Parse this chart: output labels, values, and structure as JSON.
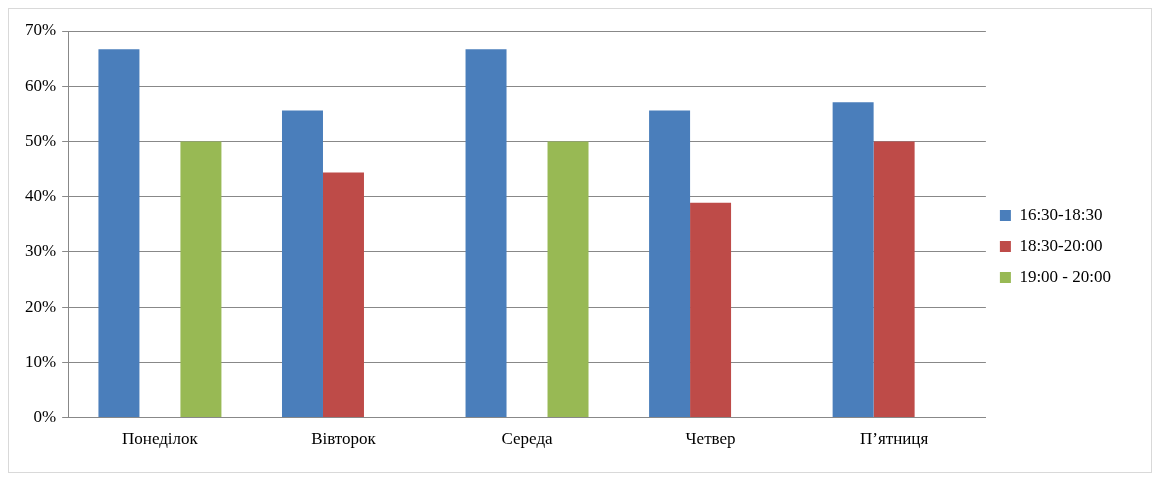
{
  "chart_data": {
    "type": "bar",
    "categories": [
      "Понеділок",
      "Вівторок",
      "Середа",
      "Четвер",
      "П’ятниця"
    ],
    "series": [
      {
        "name": "16:30-18:30",
        "color": "#4a7ebb",
        "values": [
          66.7,
          55.6,
          66.7,
          55.6,
          57.1
        ]
      },
      {
        "name": "18:30-20:00",
        "color": "#be4b48",
        "values": [
          null,
          44.4,
          null,
          38.9,
          50
        ]
      },
      {
        "name": "19:00 - 20:00",
        "color": "#98b954",
        "values": [
          50,
          null,
          50,
          null,
          null
        ]
      }
    ],
    "ylim": [
      0,
      70
    ],
    "yticks": [
      {
        "value": 0,
        "label": "0%"
      },
      {
        "value": 10,
        "label": "10%"
      },
      {
        "value": 20,
        "label": "20%"
      },
      {
        "value": 30,
        "label": "30%"
      },
      {
        "value": 40,
        "label": "40%"
      },
      {
        "value": 50,
        "label": "50%"
      },
      {
        "value": 60,
        "label": "60%"
      },
      {
        "value": 70,
        "label": "70%"
      }
    ],
    "grid": "y",
    "legend": "right"
  }
}
